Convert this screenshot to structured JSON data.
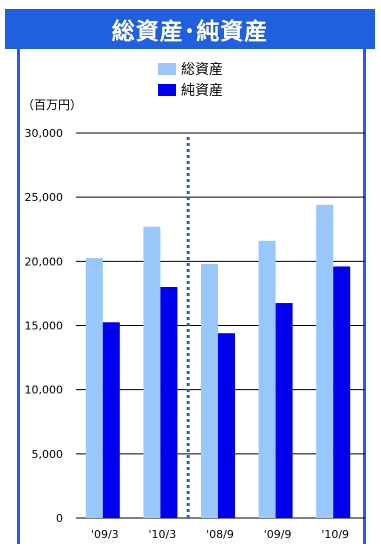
{
  "colors": {
    "title_bg": "#1f5fe0",
    "total_assets": "#99c7fa",
    "net_assets": "#0000ee",
    "divider": "#1f5fe0"
  },
  "chart_data": {
    "type": "bar",
    "title": "総資産･純資産",
    "unit_label": "（百万円）",
    "categories": [
      "'09/3",
      "'10/3",
      "'08/9",
      "'09/9",
      "'10/9"
    ],
    "series": [
      {
        "name": "総資産",
        "values": [
          20250,
          22700,
          19800,
          21600,
          24400
        ]
      },
      {
        "name": "純資産",
        "values": [
          15250,
          18000,
          14400,
          16750,
          19600
        ]
      }
    ],
    "ylim": [
      0,
      30000
    ],
    "yticks": [
      0,
      5000,
      10000,
      15000,
      20000,
      25000,
      30000
    ],
    "ytick_labels": [
      "0",
      "5,000",
      "10,000",
      "15,000",
      "20,000",
      "25,000",
      "30,000"
    ],
    "grid": true,
    "legend": "top-center",
    "divider_after_category": 1
  }
}
